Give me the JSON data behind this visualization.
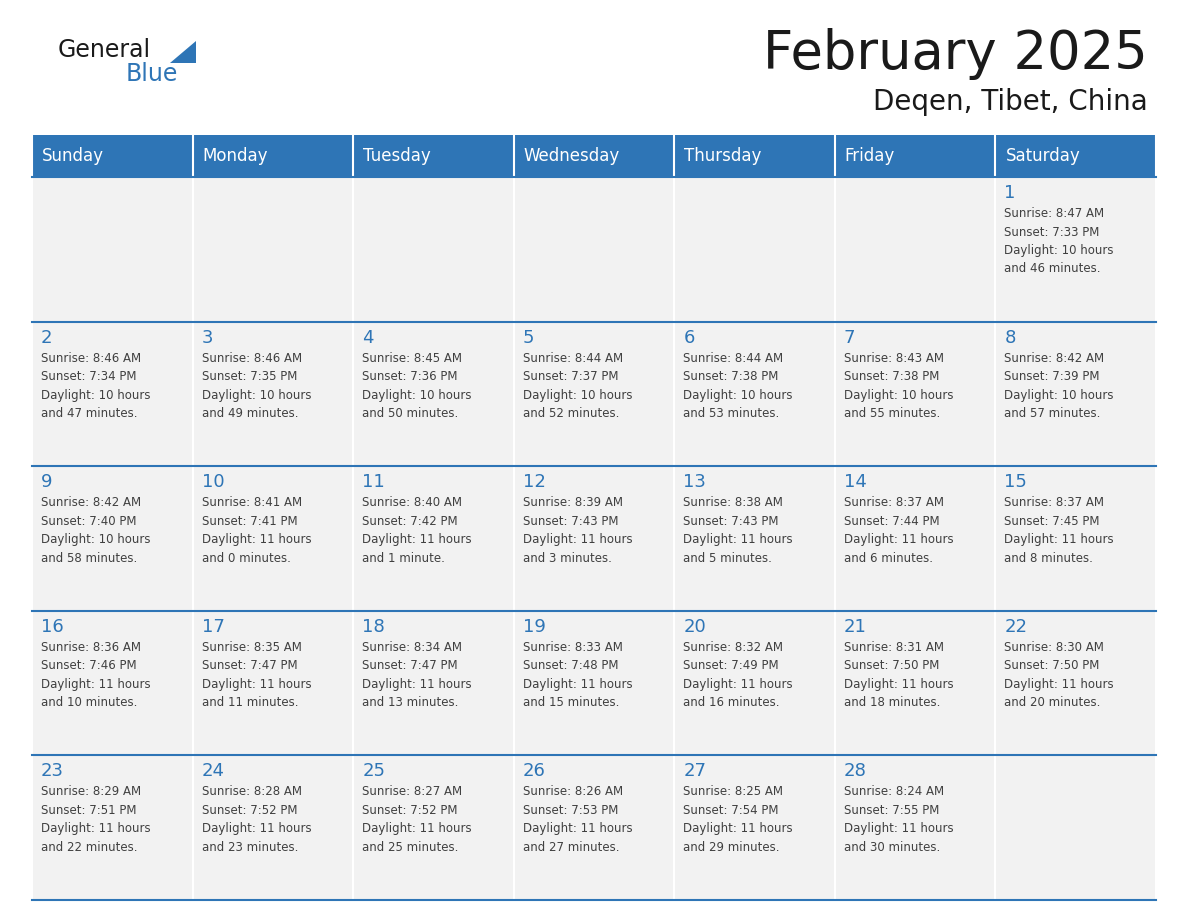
{
  "title": "February 2025",
  "subtitle": "Deqen, Tibet, China",
  "days_of_week": [
    "Sunday",
    "Monday",
    "Tuesday",
    "Wednesday",
    "Thursday",
    "Friday",
    "Saturday"
  ],
  "header_bg": "#2E75B6",
  "header_text": "#FFFFFF",
  "cell_bg": "#F2F2F2",
  "border_color": "#2E75B6",
  "separator_color": "#FFFFFF",
  "day_number_color": "#2E75B6",
  "info_text_color": "#404040",
  "title_color": "#1a1a1a",
  "logo_general_color": "#1a1a1a",
  "logo_blue_color": "#2E75B6",
  "calendar_data": [
    [
      {
        "day": null,
        "info": null
      },
      {
        "day": null,
        "info": null
      },
      {
        "day": null,
        "info": null
      },
      {
        "day": null,
        "info": null
      },
      {
        "day": null,
        "info": null
      },
      {
        "day": null,
        "info": null
      },
      {
        "day": 1,
        "info": "Sunrise: 8:47 AM\nSunset: 7:33 PM\nDaylight: 10 hours\nand 46 minutes."
      }
    ],
    [
      {
        "day": 2,
        "info": "Sunrise: 8:46 AM\nSunset: 7:34 PM\nDaylight: 10 hours\nand 47 minutes."
      },
      {
        "day": 3,
        "info": "Sunrise: 8:46 AM\nSunset: 7:35 PM\nDaylight: 10 hours\nand 49 minutes."
      },
      {
        "day": 4,
        "info": "Sunrise: 8:45 AM\nSunset: 7:36 PM\nDaylight: 10 hours\nand 50 minutes."
      },
      {
        "day": 5,
        "info": "Sunrise: 8:44 AM\nSunset: 7:37 PM\nDaylight: 10 hours\nand 52 minutes."
      },
      {
        "day": 6,
        "info": "Sunrise: 8:44 AM\nSunset: 7:38 PM\nDaylight: 10 hours\nand 53 minutes."
      },
      {
        "day": 7,
        "info": "Sunrise: 8:43 AM\nSunset: 7:38 PM\nDaylight: 10 hours\nand 55 minutes."
      },
      {
        "day": 8,
        "info": "Sunrise: 8:42 AM\nSunset: 7:39 PM\nDaylight: 10 hours\nand 57 minutes."
      }
    ],
    [
      {
        "day": 9,
        "info": "Sunrise: 8:42 AM\nSunset: 7:40 PM\nDaylight: 10 hours\nand 58 minutes."
      },
      {
        "day": 10,
        "info": "Sunrise: 8:41 AM\nSunset: 7:41 PM\nDaylight: 11 hours\nand 0 minutes."
      },
      {
        "day": 11,
        "info": "Sunrise: 8:40 AM\nSunset: 7:42 PM\nDaylight: 11 hours\nand 1 minute."
      },
      {
        "day": 12,
        "info": "Sunrise: 8:39 AM\nSunset: 7:43 PM\nDaylight: 11 hours\nand 3 minutes."
      },
      {
        "day": 13,
        "info": "Sunrise: 8:38 AM\nSunset: 7:43 PM\nDaylight: 11 hours\nand 5 minutes."
      },
      {
        "day": 14,
        "info": "Sunrise: 8:37 AM\nSunset: 7:44 PM\nDaylight: 11 hours\nand 6 minutes."
      },
      {
        "day": 15,
        "info": "Sunrise: 8:37 AM\nSunset: 7:45 PM\nDaylight: 11 hours\nand 8 minutes."
      }
    ],
    [
      {
        "day": 16,
        "info": "Sunrise: 8:36 AM\nSunset: 7:46 PM\nDaylight: 11 hours\nand 10 minutes."
      },
      {
        "day": 17,
        "info": "Sunrise: 8:35 AM\nSunset: 7:47 PM\nDaylight: 11 hours\nand 11 minutes."
      },
      {
        "day": 18,
        "info": "Sunrise: 8:34 AM\nSunset: 7:47 PM\nDaylight: 11 hours\nand 13 minutes."
      },
      {
        "day": 19,
        "info": "Sunrise: 8:33 AM\nSunset: 7:48 PM\nDaylight: 11 hours\nand 15 minutes."
      },
      {
        "day": 20,
        "info": "Sunrise: 8:32 AM\nSunset: 7:49 PM\nDaylight: 11 hours\nand 16 minutes."
      },
      {
        "day": 21,
        "info": "Sunrise: 8:31 AM\nSunset: 7:50 PM\nDaylight: 11 hours\nand 18 minutes."
      },
      {
        "day": 22,
        "info": "Sunrise: 8:30 AM\nSunset: 7:50 PM\nDaylight: 11 hours\nand 20 minutes."
      }
    ],
    [
      {
        "day": 23,
        "info": "Sunrise: 8:29 AM\nSunset: 7:51 PM\nDaylight: 11 hours\nand 22 minutes."
      },
      {
        "day": 24,
        "info": "Sunrise: 8:28 AM\nSunset: 7:52 PM\nDaylight: 11 hours\nand 23 minutes."
      },
      {
        "day": 25,
        "info": "Sunrise: 8:27 AM\nSunset: 7:52 PM\nDaylight: 11 hours\nand 25 minutes."
      },
      {
        "day": 26,
        "info": "Sunrise: 8:26 AM\nSunset: 7:53 PM\nDaylight: 11 hours\nand 27 minutes."
      },
      {
        "day": 27,
        "info": "Sunrise: 8:25 AM\nSunset: 7:54 PM\nDaylight: 11 hours\nand 29 minutes."
      },
      {
        "day": 28,
        "info": "Sunrise: 8:24 AM\nSunset: 7:55 PM\nDaylight: 11 hours\nand 30 minutes."
      },
      {
        "day": null,
        "info": null
      }
    ]
  ]
}
